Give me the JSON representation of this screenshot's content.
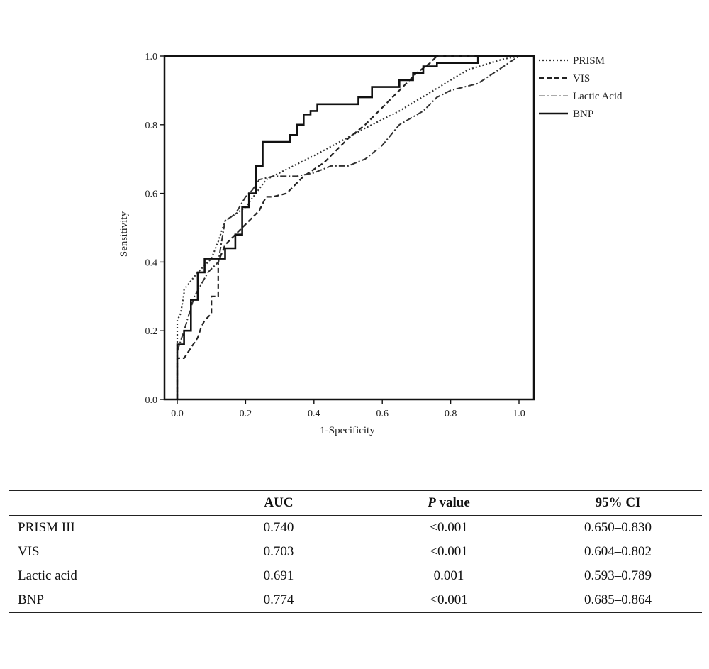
{
  "chart_data": {
    "type": "line",
    "xlabel": "1-Specificity",
    "ylabel": "Sensitivity",
    "xlim": [
      0.0,
      1.0
    ],
    "ylim": [
      0.0,
      1.0
    ],
    "xticks": [
      "0.0",
      "0.2",
      "0.4",
      "0.6",
      "0.8",
      "1.0"
    ],
    "yticks": [
      "0.0",
      "0.2",
      "0.4",
      "0.6",
      "0.8",
      "1.0"
    ],
    "grid": false,
    "legend_position": "right-top, outside plot",
    "series": [
      {
        "name": "PRISM",
        "style": "dotted",
        "x": [
          0.0,
          0.0,
          0.01,
          0.02,
          0.02,
          0.06,
          0.1,
          0.12,
          0.14,
          0.2,
          0.26,
          0.4,
          0.55,
          0.65,
          0.75,
          0.85,
          0.95,
          1.0
        ],
        "y": [
          0.0,
          0.23,
          0.25,
          0.31,
          0.32,
          0.37,
          0.41,
          0.46,
          0.52,
          0.56,
          0.64,
          0.71,
          0.79,
          0.84,
          0.9,
          0.96,
          0.99,
          1.0
        ]
      },
      {
        "name": "VIS",
        "style": "dashed",
        "x": [
          0.0,
          0.0,
          0.02,
          0.04,
          0.06,
          0.07,
          0.08,
          0.1,
          0.1,
          0.12,
          0.12,
          0.14,
          0.15,
          0.17,
          0.2,
          0.24,
          0.26,
          0.28,
          0.32,
          0.34,
          0.37,
          0.4,
          0.43,
          0.45,
          0.5,
          0.55,
          0.6,
          0.65,
          0.7,
          0.74,
          0.76,
          0.88,
          0.96,
          1.0
        ],
        "y": [
          0.0,
          0.12,
          0.12,
          0.15,
          0.18,
          0.21,
          0.23,
          0.25,
          0.3,
          0.3,
          0.4,
          0.45,
          0.46,
          0.48,
          0.51,
          0.55,
          0.59,
          0.59,
          0.6,
          0.62,
          0.65,
          0.67,
          0.69,
          0.71,
          0.76,
          0.8,
          0.85,
          0.9,
          0.95,
          0.98,
          1.0,
          1.0,
          1.0,
          1.0
        ]
      },
      {
        "name": "Lactic Acid",
        "style": "dash-dot",
        "x": [
          0.0,
          0.0,
          0.02,
          0.05,
          0.09,
          0.12,
          0.14,
          0.17,
          0.2,
          0.22,
          0.24,
          0.28,
          0.35,
          0.4,
          0.45,
          0.5,
          0.55,
          0.6,
          0.65,
          0.72,
          0.76,
          0.8,
          0.88,
          0.94,
          1.0
        ],
        "y": [
          0.0,
          0.14,
          0.2,
          0.3,
          0.37,
          0.4,
          0.52,
          0.54,
          0.59,
          0.61,
          0.64,
          0.65,
          0.65,
          0.66,
          0.68,
          0.68,
          0.7,
          0.74,
          0.8,
          0.84,
          0.88,
          0.9,
          0.92,
          0.96,
          1.0
        ]
      },
      {
        "name": "BNP",
        "style": "solid",
        "x": [
          0.0,
          0.0,
          0.02,
          0.02,
          0.04,
          0.04,
          0.06,
          0.06,
          0.08,
          0.08,
          0.1,
          0.1,
          0.14,
          0.14,
          0.17,
          0.17,
          0.19,
          0.19,
          0.21,
          0.21,
          0.23,
          0.23,
          0.25,
          0.25,
          0.27,
          0.27,
          0.33,
          0.33,
          0.35,
          0.35,
          0.37,
          0.37,
          0.39,
          0.39,
          0.41,
          0.41,
          0.45,
          0.45,
          0.53,
          0.53,
          0.57,
          0.57,
          0.65,
          0.65,
          0.69,
          0.69,
          0.72,
          0.72,
          0.76,
          0.76,
          0.81,
          0.81,
          0.88,
          0.88,
          1.0
        ],
        "y": [
          0.0,
          0.16,
          0.16,
          0.2,
          0.2,
          0.29,
          0.29,
          0.37,
          0.37,
          0.41,
          0.41,
          0.41,
          0.41,
          0.44,
          0.44,
          0.48,
          0.48,
          0.56,
          0.56,
          0.6,
          0.6,
          0.68,
          0.68,
          0.75,
          0.75,
          0.75,
          0.75,
          0.77,
          0.77,
          0.8,
          0.8,
          0.83,
          0.83,
          0.84,
          0.84,
          0.86,
          0.86,
          0.86,
          0.86,
          0.88,
          0.88,
          0.91,
          0.91,
          0.93,
          0.93,
          0.95,
          0.95,
          0.97,
          0.97,
          0.98,
          0.98,
          0.98,
          0.98,
          1.0,
          1.0
        ]
      }
    ]
  },
  "table": {
    "headers": {
      "label": "",
      "auc": "AUC",
      "p_italic": "P",
      "p_rest": " value",
      "ci": "95% CI"
    },
    "rows": [
      {
        "label": "PRISM III",
        "auc": "0.740",
        "p": "<0.001",
        "ci": "0.650–0.830"
      },
      {
        "label": "VIS",
        "auc": "0.703",
        "p": "<0.001",
        "ci": "0.604–0.802"
      },
      {
        "label": "Lactic acid",
        "auc": "0.691",
        "p": "0.001",
        "ci": "0.593–0.789"
      },
      {
        "label": "BNP",
        "auc": "0.774",
        "p": "<0.001",
        "ci": "0.685–0.864"
      }
    ]
  }
}
